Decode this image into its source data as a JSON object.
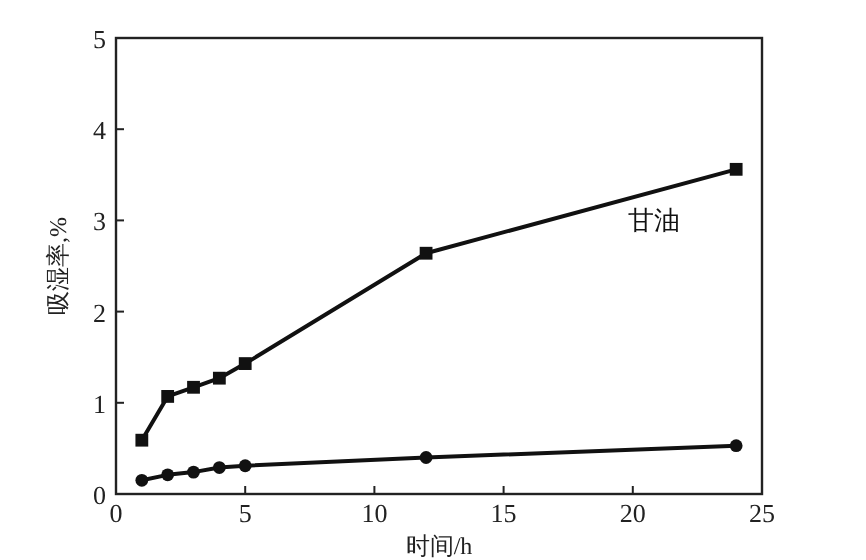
{
  "chart_data": {
    "type": "line",
    "xlabel": "时间/h",
    "ylabel": "吸湿率,%",
    "xlim": [
      0,
      25
    ],
    "xticks": [
      0,
      5,
      10,
      15,
      20,
      25
    ],
    "ylim": [
      0,
      5
    ],
    "yticks": [
      0,
      1,
      2,
      3,
      4,
      5
    ],
    "grid": false,
    "legend": false,
    "series": [
      {
        "name": "甘油",
        "color": "#111111",
        "marker": "square",
        "x": [
          1,
          2,
          3,
          4,
          5,
          12,
          24
        ],
        "values": [
          0.59,
          1.07,
          1.17,
          1.27,
          1.43,
          2.64,
          3.56
        ]
      },
      {
        "color": "#111111",
        "marker": "circle",
        "x": [
          1,
          2,
          3,
          4,
          5,
          12,
          24
        ],
        "values": [
          0.15,
          0.21,
          0.24,
          0.29,
          0.31,
          0.4,
          0.53
        ]
      }
    ]
  }
}
